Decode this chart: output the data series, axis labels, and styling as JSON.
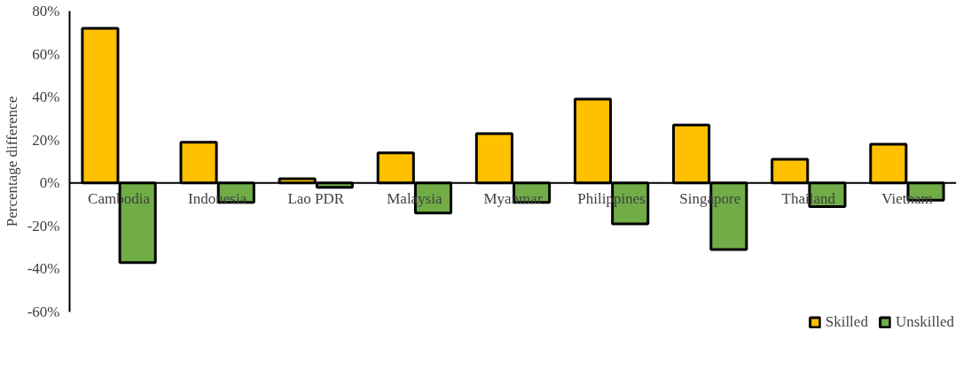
{
  "chart_data": {
    "type": "bar",
    "categories": [
      "Cambodia",
      "Indonesia",
      "Lao PDR",
      "Malaysia",
      "Myanmar",
      "Philippines",
      "Singapore",
      "Thailand",
      "Vietnam"
    ],
    "series": [
      {
        "name": "Skilled",
        "color": "#ffc000",
        "values": [
          72,
          19,
          2,
          14,
          23,
          39,
          27,
          11,
          18
        ]
      },
      {
        "name": "Unskilled",
        "color": "#70ad47",
        "values": [
          -37,
          -9,
          -2,
          -14,
          -9,
          -19,
          -31,
          -11,
          -8
        ]
      }
    ],
    "ylabel": "Percentage difference",
    "ylim": [
      -60,
      80
    ],
    "yticks": [
      {
        "value": -60,
        "label": "-60%"
      },
      {
        "value": -40,
        "label": "-40%"
      },
      {
        "value": -20,
        "label": "-20%"
      },
      {
        "value": 0,
        "label": "0%"
      },
      {
        "value": 20,
        "label": "20%"
      },
      {
        "value": 40,
        "label": "40%"
      },
      {
        "value": 60,
        "label": "60%"
      },
      {
        "value": 80,
        "label": "80%"
      }
    ],
    "grid": false,
    "legend": "bottom"
  }
}
